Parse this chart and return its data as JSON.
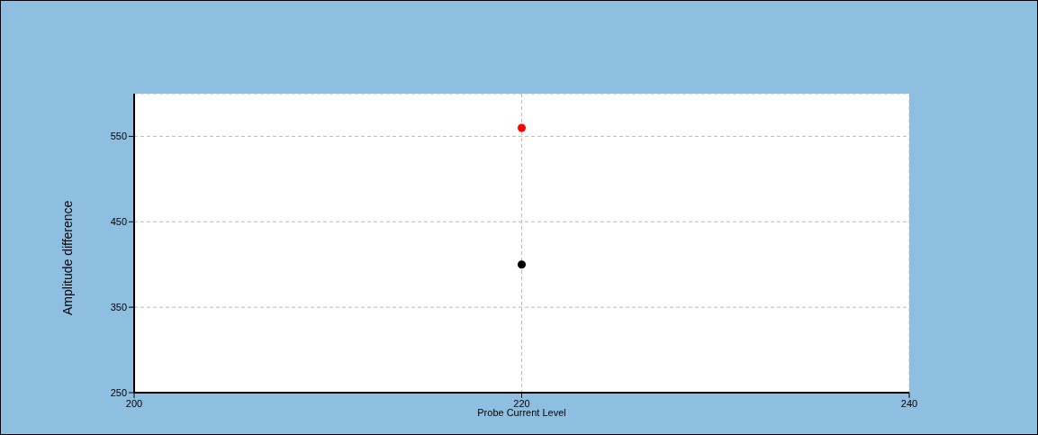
{
  "chart_data": {
    "type": "scatter",
    "xlabel": "Probe Current Level",
    "ylabel": "Amplitude difference",
    "x": [
      220
    ],
    "series": [
      {
        "color": "#ff0000",
        "values": [
          560
        ]
      },
      {
        "color": "#000000",
        "values": [
          400
        ]
      }
    ],
    "xlim": [
      200,
      240
    ],
    "xticks": [
      200,
      220,
      240
    ],
    "ylim": [
      250,
      600
    ],
    "yticks": [
      250,
      350,
      450,
      550
    ],
    "grid": true,
    "marker": "circle"
  }
}
